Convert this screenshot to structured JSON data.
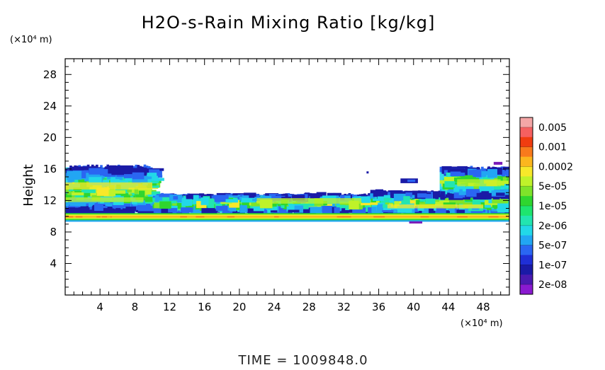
{
  "chart_data": {
    "type": "heatmap",
    "title": "H2O-s-Rain Mixing Ratio [kg/kg]",
    "xlabel": "",
    "ylabel": "Height",
    "x_unit": "(×10⁴ m)",
    "y_unit": "(×10⁴ m)",
    "xlim": [
      0,
      51
    ],
    "ylim": [
      0,
      30
    ],
    "x_ticks": [
      "4",
      "8",
      "12",
      "16",
      "20",
      "24",
      "28",
      "32",
      "36",
      "40",
      "44",
      "48"
    ],
    "y_ticks": [
      "4",
      "8",
      "12",
      "16",
      "20",
      "24",
      "28"
    ],
    "colorbar": {
      "labels": [
        "0.005",
        "0.001",
        "0.0002",
        "5e-05",
        "1e-05",
        "2e-06",
        "5e-07",
        "1e-07",
        "2e-08"
      ],
      "colors": [
        "#f4a6a6",
        "#f56060",
        "#f03c10",
        "#f87a1c",
        "#fbb61e",
        "#f7e82a",
        "#bff22a",
        "#7ee32a",
        "#2fd62f",
        "#1ee56e",
        "#22e5b0",
        "#22d8e8",
        "#22a6f3",
        "#2a66f2",
        "#1f2fd6",
        "#1a1aa6",
        "#4a1ab0",
        "#8a1ad0"
      ]
    },
    "fields": [
      {
        "x": [
          0,
          51
        ],
        "y": [
          9.5,
          10.3
        ],
        "level": "1e-05 to 0.0002",
        "note": "continuous layer across domain"
      },
      {
        "x": [
          0,
          10
        ],
        "y": [
          10.5,
          16.3
        ],
        "level": "2e-08 to 5e-05"
      },
      {
        "x": [
          10,
          35
        ],
        "y": [
          10.5,
          12.8
        ],
        "level": "2e-08 to 5e-05"
      },
      {
        "x": [
          35,
          51
        ],
        "y": [
          10.3,
          13.2
        ],
        "level": "2e-08 to 5e-05"
      },
      {
        "x": [
          43,
          51
        ],
        "y": [
          12.5,
          16.3
        ],
        "level": "2e-08 to 5e-05"
      },
      {
        "x": [
          38.5,
          40.5
        ],
        "y": [
          14.2,
          14.8
        ],
        "level": "2e-08 to 1e-07"
      }
    ],
    "footer": "TIME  =  1009848.0"
  }
}
